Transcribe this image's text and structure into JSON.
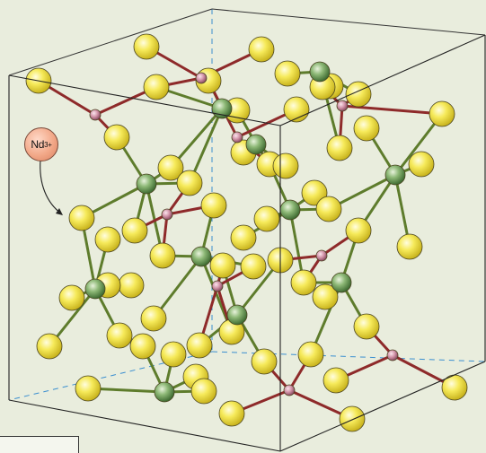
{
  "label": {
    "ion": "Nd",
    "charge": "3+"
  },
  "colors": {
    "background": "#e9eddd",
    "anion_fill": "#f4e450",
    "cation_fill": "#6f9a5b",
    "small_cation_fill": "#c9889a",
    "green_bond": "#5e7c2c",
    "red_bond": "#8e2a2a",
    "cell_edge": "#222222",
    "hidden_edge": "#3b8fd0"
  }
}
